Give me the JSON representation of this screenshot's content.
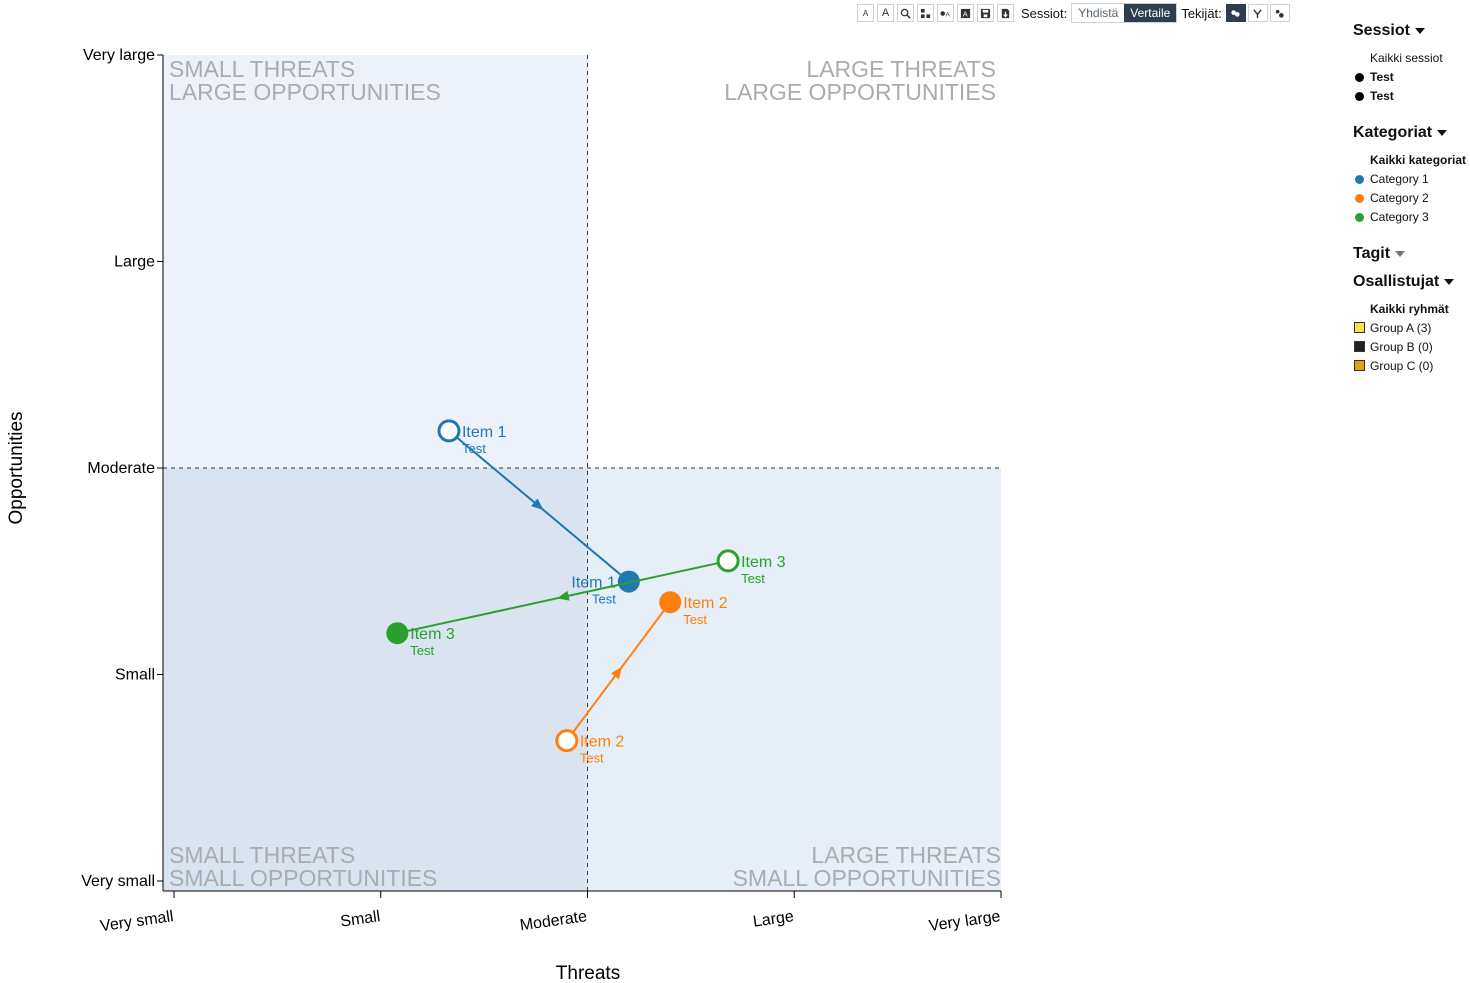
{
  "toolbar": {
    "buttons": [
      {
        "icon": "font-decrease-icon",
        "glyph": "A"
      },
      {
        "icon": "font-increase-icon",
        "glyph": "A"
      },
      {
        "icon": "zoom-icon"
      },
      {
        "icon": "layout-icon"
      },
      {
        "icon": "labels-icon"
      },
      {
        "icon": "text-box-icon"
      },
      {
        "icon": "save-icon"
      },
      {
        "icon": "download-icon"
      }
    ],
    "sessions_label": "Sessiot:",
    "merge_label": "Yhdistä",
    "compare_label": "Vertaile",
    "authors_label": "Tekijät:",
    "active_color": "#2f3e4e"
  },
  "sidebar": {
    "sessions": {
      "title": "Sessiot",
      "all": "Kaikki sessiot",
      "items": [
        "Test",
        "Test"
      ]
    },
    "categories": {
      "title": "Kategoriat",
      "all": "Kaikki kategoriat",
      "items": [
        {
          "label": "Category 1",
          "color": "#1f77b4"
        },
        {
          "label": "Category 2",
          "color": "#ff7f0e"
        },
        {
          "label": "Category 3",
          "color": "#2ca02c"
        }
      ]
    },
    "tags": {
      "title": "Tagit"
    },
    "participants": {
      "title": "Osallistujat",
      "all": "Kaikki ryhmät",
      "items": [
        {
          "label": "Group A (3)",
          "color": "#f7e14a"
        },
        {
          "label": "Group B (0)",
          "color": "#222222"
        },
        {
          "label": "Group C (0)",
          "color": "#e6a00e"
        }
      ]
    }
  },
  "chart_data": {
    "type": "scatter",
    "xlabel": "Threats",
    "ylabel": "Opportunities",
    "x_ticks": [
      "Very small",
      "Small",
      "Moderate",
      "Large",
      "Very large"
    ],
    "y_ticks": [
      "Very small",
      "Small",
      "Moderate",
      "Large",
      "Very large"
    ],
    "xlim": [
      1,
      5
    ],
    "ylim": [
      1,
      5
    ],
    "threshold": {
      "x": 3,
      "y": 3
    },
    "quadrant_titles": {
      "top_left": [
        "SMALL THREATS",
        "LARGE OPPORTUNITIES"
      ],
      "top_right": [
        "LARGE THREATS",
        "LARGE OPPORTUNITIES"
      ],
      "bottom_left": [
        "SMALL THREATS",
        "SMALL OPPORTUNITIES"
      ],
      "bottom_right": [
        "LARGE THREATS",
        "SMALL OPPORTUNITIES"
      ]
    },
    "quadrant_colors": {
      "top_left": "#edf2fa",
      "bottom_left": "#d9e4f0",
      "bottom_right": "#e6eef7",
      "top_right": "#ffffff"
    },
    "series": [
      {
        "name": "Category 1",
        "color": "#1f77b4",
        "from": {
          "label": "Item 1",
          "session": "Test",
          "x": 2.33,
          "y": 3.18
        },
        "to": {
          "label": "Item 1",
          "session": "Test",
          "x": 3.2,
          "y": 2.45
        }
      },
      {
        "name": "Category 2",
        "color": "#ff7f0e",
        "from": {
          "label": "Item 2",
          "session": "Test",
          "x": 2.9,
          "y": 1.68
        },
        "to": {
          "label": "Item 2",
          "session": "Test",
          "x": 3.4,
          "y": 2.35
        }
      },
      {
        "name": "Category 3",
        "color": "#2ca02c",
        "from": {
          "label": "Item 3",
          "session": "Test",
          "x": 3.68,
          "y": 2.55
        },
        "to": {
          "label": "Item 3",
          "session": "Test",
          "x": 2.08,
          "y": 2.2
        }
      }
    ]
  }
}
